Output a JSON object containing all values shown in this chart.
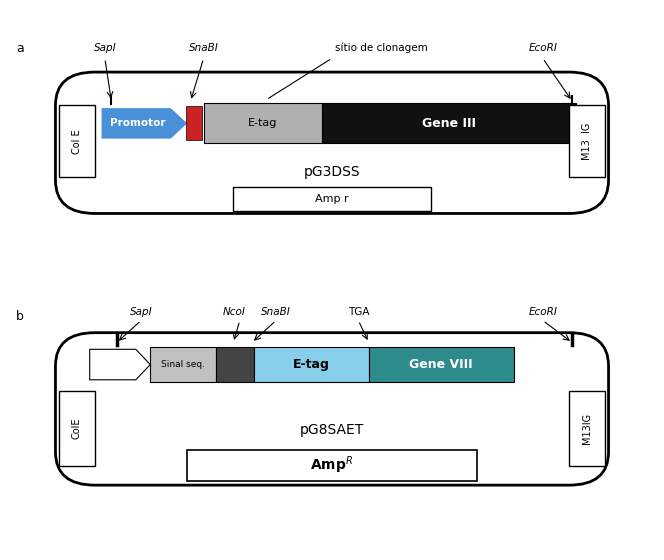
{
  "fig_width": 6.64,
  "fig_height": 5.6,
  "bg_color": "#ffffff",
  "panel_a": {
    "label": "a",
    "plasmid_name": "pG3DSS",
    "promotor_color": "#4a90d9",
    "red_box_color": "#cc2222",
    "etag_color": "#b0b0b0",
    "geneIII_color": "#111111",
    "colE_color": "#ffffff",
    "m13_color": "#ffffff",
    "ampr_color": "#ffffff"
  },
  "panel_b": {
    "label": "b",
    "plasmid_name": "pG8SAET",
    "sinalseq_color": "#c0c0c0",
    "dark_box_color": "#444444",
    "etag_color": "#87ceeb",
    "geneVIII_color": "#2e8b8b",
    "colE_color": "#ffffff",
    "m13_color": "#ffffff",
    "ampr_color": "#ffffff"
  }
}
